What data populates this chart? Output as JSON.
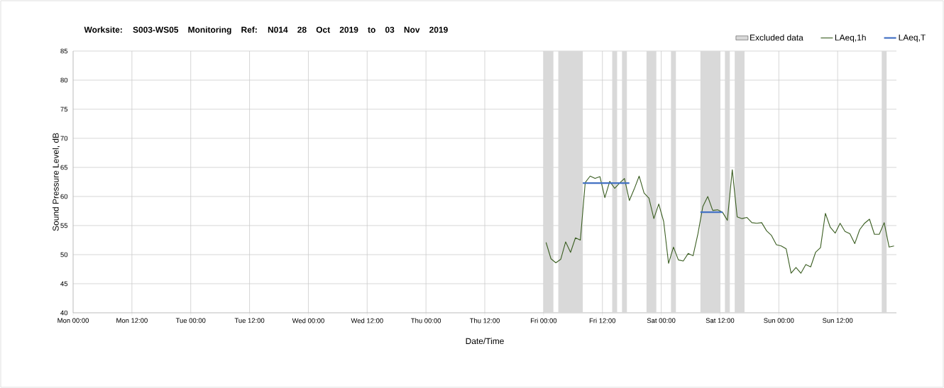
{
  "chart_data": {
    "type": "line",
    "title": "Worksite: S003-WS05 Monitoring Ref: N014 28 Oct 2019 to 03 Nov 2019",
    "xlabel": "Date/Time",
    "ylabel": "Sound Pressure Level, dB",
    "xlim": [
      "2019-10-28T00:00",
      "2019-11-04T00:00"
    ],
    "ylim": [
      40,
      85
    ],
    "xticks": [
      {
        "value": "2019-10-28T00:00",
        "label": "Mon 00:00"
      },
      {
        "value": "2019-10-28T12:00",
        "label": "Mon 12:00"
      },
      {
        "value": "2019-10-29T00:00",
        "label": "Tue 00:00"
      },
      {
        "value": "2019-10-29T12:00",
        "label": "Tue 12:00"
      },
      {
        "value": "2019-10-30T00:00",
        "label": "Wed 00:00"
      },
      {
        "value": "2019-10-30T12:00",
        "label": "Wed 12:00"
      },
      {
        "value": "2019-10-31T00:00",
        "label": "Thu 00:00"
      },
      {
        "value": "2019-10-31T12:00",
        "label": "Thu 12:00"
      },
      {
        "value": "2019-11-01T00:00",
        "label": "Fri 00:00"
      },
      {
        "value": "2019-11-01T12:00",
        "label": "Fri 12:00"
      },
      {
        "value": "2019-11-02T00:00",
        "label": "Sat 00:00"
      },
      {
        "value": "2019-11-02T12:00",
        "label": "Sat 12:00"
      },
      {
        "value": "2019-11-03T00:00",
        "label": "Sun 00:00"
      },
      {
        "value": "2019-11-03T12:00",
        "label": "Sun 12:00"
      }
    ],
    "yticks": [
      40,
      45,
      50,
      55,
      60,
      65,
      70,
      75,
      80,
      85
    ],
    "grid": true,
    "legend": "top right",
    "marker": "none",
    "line_style": "solid",
    "bands": [
      {
        "axis": "x",
        "from": "2019-11-01T00:00",
        "to": "2019-11-01T02:00",
        "label": "Excluded data",
        "color": "#d9d9d9"
      },
      {
        "axis": "x",
        "from": "2019-11-01T03:00",
        "to": "2019-11-01T08:00",
        "color": "#d9d9d9"
      },
      {
        "axis": "x",
        "from": "2019-11-01T14:00",
        "to": "2019-11-01T15:00",
        "color": "#d9d9d9"
      },
      {
        "axis": "x",
        "from": "2019-11-01T16:00",
        "to": "2019-11-01T17:00",
        "color": "#d9d9d9"
      },
      {
        "axis": "x",
        "from": "2019-11-01T21:00",
        "to": "2019-11-01T23:00",
        "color": "#d9d9d9"
      },
      {
        "axis": "x",
        "from": "2019-11-02T02:00",
        "to": "2019-11-02T03:00",
        "color": "#d9d9d9"
      },
      {
        "axis": "x",
        "from": "2019-11-02T08:00",
        "to": "2019-11-02T12:00",
        "color": "#d9d9d9"
      },
      {
        "axis": "x",
        "from": "2019-11-02T13:00",
        "to": "2019-11-02T14:00",
        "color": "#d9d9d9"
      },
      {
        "axis": "x",
        "from": "2019-11-02T15:00",
        "to": "2019-11-02T17:00",
        "color": "#d9d9d9"
      },
      {
        "axis": "x",
        "from": "2019-11-03T21:00",
        "to": "2019-11-03T22:00",
        "color": "#d9d9d9"
      }
    ],
    "series": [
      {
        "name": "LAeq,1h",
        "color": "#3b5e22",
        "x": [
          "2019-11-01T00:30",
          "2019-11-01T01:30",
          "2019-11-01T02:30",
          "2019-11-01T03:30",
          "2019-11-01T04:30",
          "2019-11-01T05:30",
          "2019-11-01T06:30",
          "2019-11-01T07:30",
          "2019-11-01T08:30",
          "2019-11-01T09:30",
          "2019-11-01T10:30",
          "2019-11-01T11:30",
          "2019-11-01T12:30",
          "2019-11-01T13:30",
          "2019-11-01T14:30",
          "2019-11-01T15:30",
          "2019-11-01T16:30",
          "2019-11-01T17:30",
          "2019-11-01T18:30",
          "2019-11-01T19:30",
          "2019-11-01T20:30",
          "2019-11-01T21:30",
          "2019-11-01T22:30",
          "2019-11-01T23:30",
          "2019-11-02T00:30",
          "2019-11-02T01:30",
          "2019-11-02T02:30",
          "2019-11-02T03:30",
          "2019-11-02T04:30",
          "2019-11-02T05:30",
          "2019-11-02T06:30",
          "2019-11-02T07:30",
          "2019-11-02T08:30",
          "2019-11-02T09:30",
          "2019-11-02T10:30",
          "2019-11-02T11:30",
          "2019-11-02T12:30",
          "2019-11-02T13:30",
          "2019-11-02T14:30",
          "2019-11-02T15:30",
          "2019-11-02T16:30",
          "2019-11-02T17:30",
          "2019-11-02T18:30",
          "2019-11-02T19:30",
          "2019-11-02T20:30",
          "2019-11-02T21:30",
          "2019-11-02T22:30",
          "2019-11-02T23:30",
          "2019-11-03T00:30",
          "2019-11-03T01:30",
          "2019-11-03T02:30",
          "2019-11-03T03:30",
          "2019-11-03T04:30",
          "2019-11-03T05:30",
          "2019-11-03T06:30",
          "2019-11-03T07:30",
          "2019-11-03T08:30",
          "2019-11-03T09:30",
          "2019-11-03T10:30",
          "2019-11-03T11:30",
          "2019-11-03T12:30",
          "2019-11-03T13:30",
          "2019-11-03T14:30",
          "2019-11-03T15:30",
          "2019-11-03T16:30",
          "2019-11-03T17:30",
          "2019-11-03T18:30",
          "2019-11-03T19:30",
          "2019-11-03T20:30",
          "2019-11-03T21:30",
          "2019-11-03T22:30",
          "2019-11-03T23:30"
        ],
        "values": [
          52.1,
          49.3,
          48.6,
          49.2,
          52.2,
          50.4,
          52.9,
          52.5,
          62.4,
          63.5,
          63.1,
          63.4,
          59.8,
          62.6,
          61.4,
          62.3,
          63.1,
          59.3,
          61.3,
          63.5,
          60.6,
          59.7,
          56.2,
          58.7,
          55.7,
          48.5,
          51.3,
          49.1,
          48.9,
          50.2,
          49.8,
          53.6,
          58.3,
          60.0,
          57.6,
          57.7,
          57.3,
          55.9,
          64.6,
          56.5,
          56.2,
          56.4,
          55.5,
          55.4,
          55.5,
          54.1,
          53.3,
          51.7,
          51.5,
          51.0,
          46.8,
          47.8,
          46.8,
          48.3,
          47.9,
          50.4,
          51.2,
          57.1,
          54.7,
          53.7,
          55.4,
          54.0,
          53.6,
          51.9,
          54.3,
          55.4,
          56.1,
          53.5,
          53.5,
          55.5,
          51.3,
          51.5
        ]
      },
      {
        "name": "LAeq,T",
        "color": "#4472c4",
        "x": [
          "2019-11-01T08:00",
          "2019-11-01T17:30",
          "2019-11-02T00:00",
          "2019-11-02T08:00",
          "2019-11-02T12:30"
        ],
        "values": [
          62.3,
          62.3,
          null,
          57.3,
          57.3
        ]
      }
    ]
  }
}
